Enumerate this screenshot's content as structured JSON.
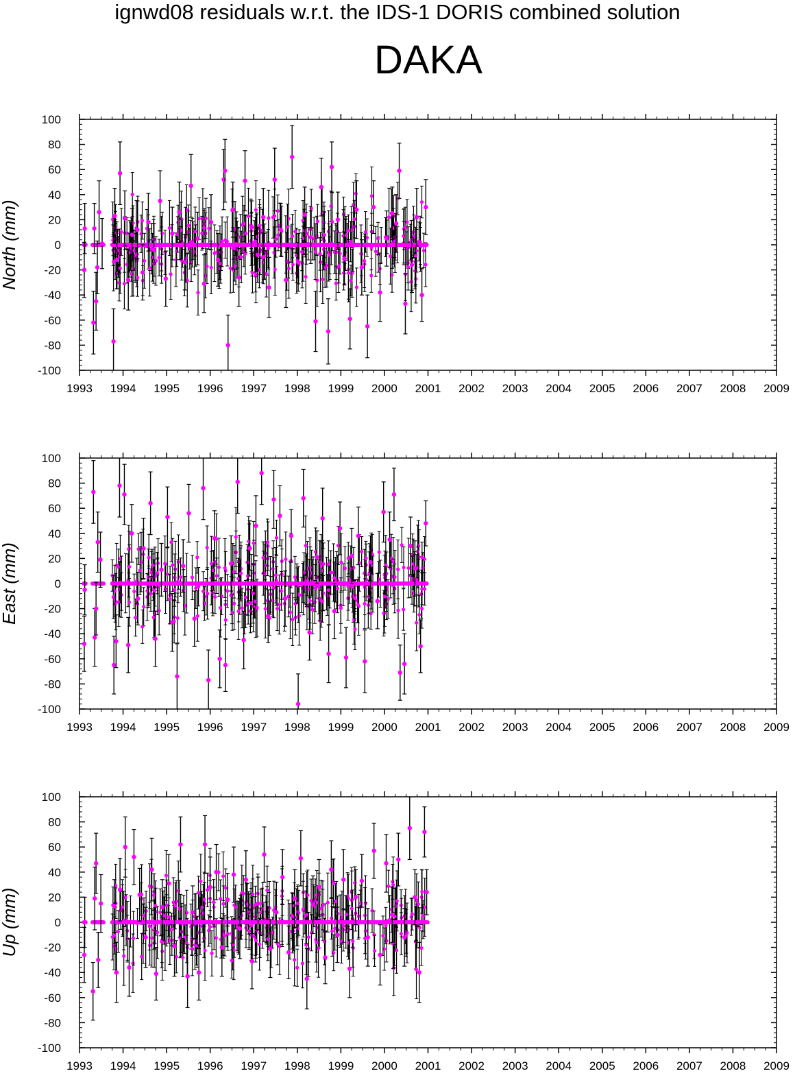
{
  "header": {
    "title": "ignwd08 residuals w.r.t. the IDS-1 DORIS combined solution",
    "station": "DAKA"
  },
  "colors": {
    "marker": "#ff00ff",
    "error_bar": "#000000",
    "axis": "#000000"
  },
  "chart_data": [
    {
      "type": "scatter",
      "ylabel": "North (mm)",
      "xlim": [
        1993,
        2009
      ],
      "ylim": [
        -100,
        100
      ],
      "xticks": [
        "1993",
        "1994",
        "1995",
        "1996",
        "1997",
        "1998",
        "1999",
        "2000",
        "2001",
        "2002",
        "2003",
        "2004",
        "2005",
        "2006",
        "2007",
        "2008",
        "2009"
      ],
      "yticks": [
        "100",
        "80",
        "60",
        "40",
        "20",
        "0",
        "-20",
        "-40",
        "-60",
        "-80",
        "-100"
      ],
      "series": [
        {
          "x": [
            1993.11,
            1993.12,
            1993.32,
            1993.34,
            1993.38,
            1993.41,
            1993.45,
            1993.52,
            1993.78,
            1993.81,
            1993.86,
            1993.93,
            1994.04,
            1994.12,
            1994.21,
            1994.33,
            1994.45,
            1994.58,
            1994.71,
            1994.85,
            1994.98,
            1995.13,
            1995.29,
            1995.42,
            1995.56,
            1995.71,
            1995.86,
            1996.02,
            1996.18,
            1996.31,
            1996.34,
            1996.41,
            1996.52,
            1996.66,
            1996.8,
            1996.95,
            1997.09,
            1997.22,
            1997.35,
            1997.48,
            1997.62,
            1997.74,
            1997.88,
            1998.02,
            1998.17,
            1998.31,
            1998.42,
            1998.55,
            1998.71,
            1998.79,
            1998.93,
            1999.08,
            1999.21,
            1999.36,
            1999.48,
            1999.61,
            1999.75,
            1999.9,
            2000.05,
            2000.18,
            2000.27,
            2000.34,
            2000.48,
            2000.63,
            2000.74,
            2000.86,
            2000.95
          ],
          "y": [
            -20,
            13,
            -62,
            13,
            -45,
            -18,
            26,
            1,
            -77,
            23,
            -12,
            57,
            21,
            -28,
            8,
            12,
            -22,
            18,
            -4,
            35,
            -27,
            9,
            26,
            -14,
            47,
            5,
            -31,
            18,
            -12,
            52,
            59,
            -80,
            28,
            -26,
            51,
            14,
            -8,
            22,
            -34,
            52,
            12,
            -28,
            70,
            -14,
            24,
            6,
            -61,
            46,
            -69,
            62,
            20,
            -11,
            -59,
            28,
            -18,
            -65,
            30,
            -38,
            5,
            25,
            17,
            59,
            -47,
            -16,
            22,
            -40,
            30
          ],
          "err": [
            22,
            20,
            25,
            20,
            23,
            21,
            25,
            20,
            26,
            22,
            23,
            25,
            22,
            24,
            21,
            23,
            22,
            23,
            21,
            24,
            22,
            21,
            24,
            22,
            25,
            21,
            23,
            22,
            21,
            24,
            25,
            24,
            22,
            23,
            24,
            21,
            22,
            23,
            24,
            25,
            21,
            22,
            25,
            23,
            22,
            21,
            24,
            23,
            26,
            20,
            22,
            21,
            24,
            23,
            22,
            25,
            21,
            23,
            22,
            21,
            23,
            22,
            24,
            22,
            23,
            21,
            22
          ]
        }
      ]
    },
    {
      "type": "scatter",
      "ylabel": "East (mm)",
      "xlim": [
        1993,
        2009
      ],
      "ylim": [
        -100,
        100
      ],
      "xticks": [
        "1993",
        "1994",
        "1995",
        "1996",
        "1997",
        "1998",
        "1999",
        "2000",
        "2001",
        "2002",
        "2003",
        "2004",
        "2005",
        "2006",
        "2007",
        "2008",
        "2009"
      ],
      "yticks": [
        "100",
        "80",
        "60",
        "40",
        "20",
        "0",
        "-20",
        "-40",
        "-60",
        "-80",
        "-100"
      ],
      "series": [
        {
          "x": [
            1993.11,
            1993.12,
            1993.32,
            1993.35,
            1993.38,
            1993.42,
            1993.48,
            1993.79,
            1993.84,
            1993.92,
            1994.03,
            1994.12,
            1994.2,
            1994.34,
            1994.47,
            1994.63,
            1994.74,
            1994.88,
            1995.02,
            1995.13,
            1995.24,
            1995.38,
            1995.51,
            1995.64,
            1995.84,
            1995.96,
            1996.1,
            1996.22,
            1996.35,
            1996.48,
            1996.63,
            1996.77,
            1996.91,
            1997.05,
            1997.18,
            1997.33,
            1997.46,
            1997.6,
            1997.72,
            1997.86,
            1998.02,
            1998.14,
            1998.28,
            1998.45,
            1998.58,
            1998.72,
            1998.85,
            1998.98,
            1999.12,
            1999.25,
            1999.4,
            1999.55,
            1999.68,
            1999.84,
            1999.98,
            2000.12,
            2000.22,
            2000.36,
            2000.46,
            2000.6,
            2000.7,
            2000.83,
            2000.95
          ],
          "y": [
            -48,
            -5,
            73,
            -43,
            -20,
            33,
            19,
            -65,
            -46,
            78,
            71,
            -49,
            40,
            -12,
            28,
            64,
            -44,
            11,
            53,
            -31,
            -74,
            14,
            56,
            -28,
            76,
            -77,
            36,
            -60,
            -65,
            16,
            81,
            -45,
            28,
            46,
            88,
            -26,
            67,
            54,
            -12,
            38,
            -96,
            68,
            -39,
            21,
            52,
            -56,
            -22,
            44,
            -59,
            22,
            38,
            -62,
            17,
            -14,
            57,
            35,
            71,
            -71,
            -64,
            30,
            12,
            -50,
            48
          ],
          "err": [
            22,
            20,
            25,
            23,
            21,
            24,
            22,
            23,
            21,
            25,
            24,
            22,
            23,
            21,
            24,
            25,
            22,
            21,
            24,
            23,
            26,
            21,
            23,
            22,
            25,
            24,
            22,
            23,
            21,
            22,
            25,
            23,
            22,
            24,
            25,
            21,
            23,
            24,
            22,
            21,
            24,
            23,
            22,
            21,
            24,
            23,
            22,
            21,
            24,
            22,
            23,
            25,
            21,
            22,
            24,
            22,
            21,
            22,
            24,
            23,
            22,
            21,
            18
          ]
        }
      ]
    },
    {
      "type": "scatter",
      "ylabel": "Up (mm)",
      "xlim": [
        1993,
        2009
      ],
      "ylim": [
        -100,
        100
      ],
      "xticks": [
        "1993",
        "1994",
        "1995",
        "1996",
        "1997",
        "1998",
        "1999",
        "2000",
        "2001",
        "2002",
        "2003",
        "2004",
        "2005",
        "2006",
        "2007",
        "2008",
        "2009"
      ],
      "yticks": [
        "100",
        "80",
        "60",
        "40",
        "20",
        "0",
        "-20",
        "-40",
        "-60",
        "-80",
        "-100"
      ],
      "series": [
        {
          "x": [
            1993.11,
            1993.12,
            1993.31,
            1993.35,
            1993.38,
            1993.43,
            1993.49,
            1993.8,
            1993.85,
            1993.93,
            1994.05,
            1994.14,
            1994.25,
            1994.38,
            1994.52,
            1994.66,
            1994.76,
            1994.9,
            1995.05,
            1995.18,
            1995.32,
            1995.48,
            1995.6,
            1995.74,
            1995.88,
            1996.0,
            1996.14,
            1996.27,
            1996.4,
            1996.54,
            1996.68,
            1996.82,
            1996.96,
            1997.1,
            1997.24,
            1997.38,
            1997.52,
            1997.66,
            1997.8,
            1997.94,
            1998.08,
            1998.22,
            1998.36,
            1998.5,
            1998.64,
            1998.78,
            1998.92,
            1999.06,
            1999.2,
            1999.34,
            1999.48,
            1999.62,
            1999.76,
            1999.9,
            2000.04,
            2000.18,
            2000.32,
            2000.46,
            2000.58,
            2000.7,
            2000.8,
            2000.92,
            2000.97
          ],
          "y": [
            -26,
            0,
            -55,
            19,
            47,
            -30,
            15,
            13,
            -40,
            26,
            60,
            -36,
            52,
            22,
            -12,
            42,
            -41,
            12,
            31,
            -19,
            62,
            -43,
            8,
            -40,
            62,
            28,
            40,
            -20,
            18,
            38,
            -5,
            34,
            -31,
            15,
            54,
            -21,
            8,
            36,
            -24,
            19,
            51,
            -45,
            14,
            28,
            -28,
            42,
            -10,
            34,
            -37,
            20,
            33,
            -12,
            57,
            -26,
            47,
            6,
            50,
            -12,
            75,
            20,
            -40,
            72,
            24
          ],
          "err": [
            22,
            20,
            23,
            25,
            24,
            22,
            23,
            21,
            24,
            25,
            24,
            23,
            22,
            21,
            24,
            25,
            21,
            22,
            23,
            24,
            22,
            25,
            21,
            22,
            23,
            24,
            22,
            23,
            21,
            22,
            24,
            23,
            22,
            21,
            22,
            23,
            24,
            22,
            21,
            23,
            22,
            24,
            23,
            22,
            21,
            23,
            22,
            24,
            23,
            22,
            21,
            23,
            22,
            24,
            23,
            22,
            21,
            23,
            25,
            22,
            24,
            20,
            18
          ]
        }
      ]
    }
  ]
}
